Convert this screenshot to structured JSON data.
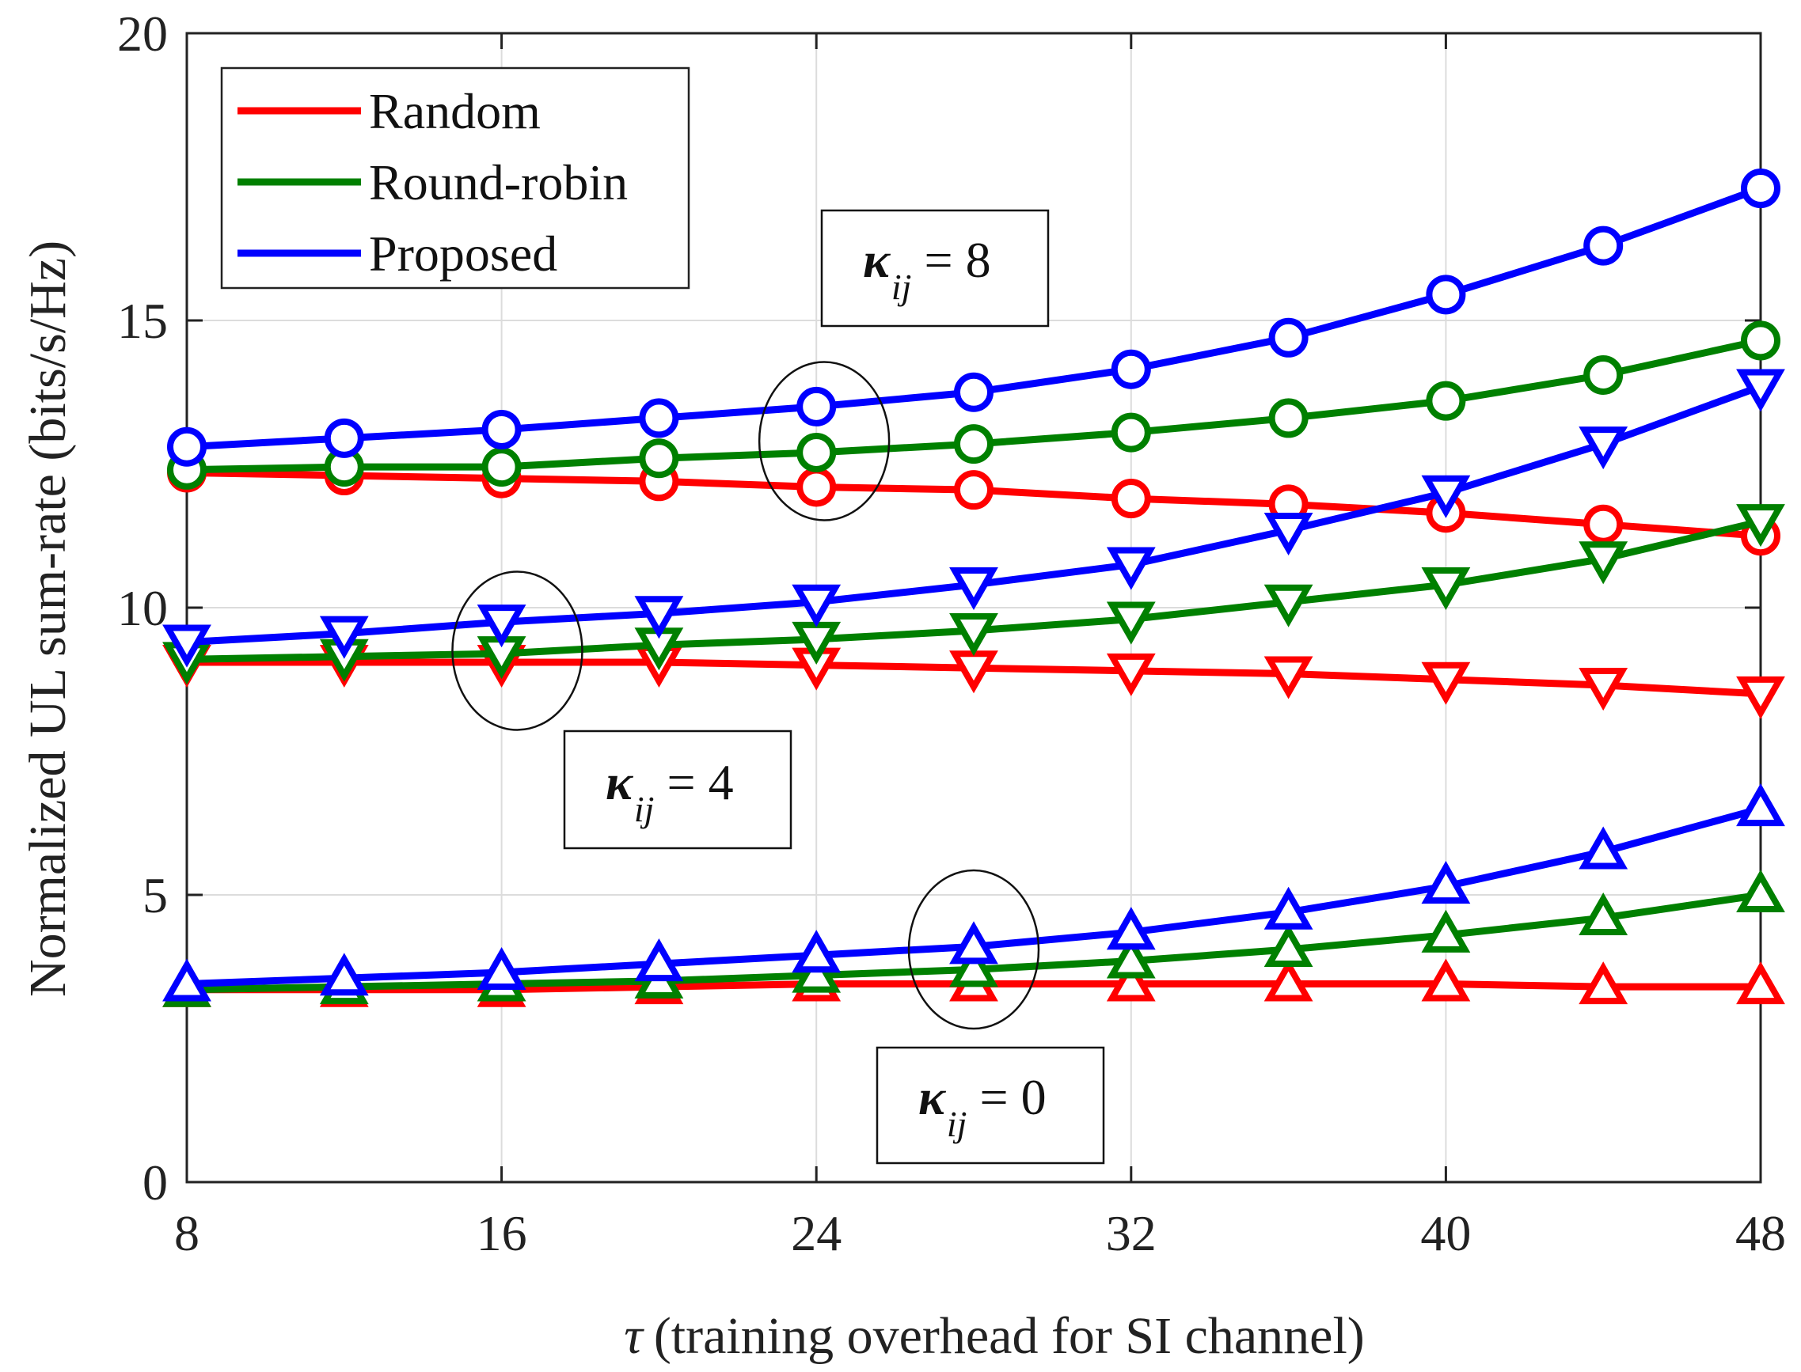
{
  "chart_data": {
    "type": "line",
    "xlabel_symbol": "τ",
    "xlabel": "(training overhead for SI channel)",
    "ylabel": "Normalized UL sum-rate (bits/s/Hz)",
    "xlim": [
      8,
      48
    ],
    "ylim": [
      0,
      20
    ],
    "xticks": [
      8,
      16,
      24,
      32,
      40,
      48
    ],
    "yticks": [
      0,
      5,
      10,
      15,
      20
    ],
    "grid": true,
    "legend_position": "top-left",
    "x": [
      8,
      12,
      16,
      20,
      24,
      28,
      32,
      36,
      40,
      44,
      48
    ],
    "colors": {
      "Random": "#ff0000",
      "Round-robin": "#008000",
      "Proposed": "#0000ff"
    },
    "legend": [
      "Random",
      "Round-robin",
      "Proposed"
    ],
    "series": [
      {
        "name": "Random",
        "kappa": "8",
        "marker": "circle",
        "values": [
          12.35,
          12.3,
          12.25,
          12.2,
          12.1,
          12.05,
          11.9,
          11.8,
          11.65,
          11.45,
          11.25
        ]
      },
      {
        "name": "Round-robin",
        "kappa": "8",
        "marker": "circle",
        "values": [
          12.4,
          12.45,
          12.45,
          12.6,
          12.7,
          12.85,
          13.05,
          13.3,
          13.6,
          14.05,
          14.65
        ]
      },
      {
        "name": "Proposed",
        "kappa": "8",
        "marker": "circle",
        "values": [
          12.8,
          12.95,
          13.1,
          13.3,
          13.5,
          13.75,
          14.15,
          14.7,
          15.45,
          16.3,
          17.3
        ]
      },
      {
        "name": "Random",
        "kappa": "4",
        "marker": "triangle-down",
        "values": [
          9.05,
          9.05,
          9.05,
          9.05,
          9.0,
          8.95,
          8.9,
          8.85,
          8.75,
          8.65,
          8.5
        ]
      },
      {
        "name": "Round-robin",
        "kappa": "4",
        "marker": "triangle-down",
        "values": [
          9.1,
          9.15,
          9.2,
          9.35,
          9.45,
          9.6,
          9.8,
          10.1,
          10.4,
          10.85,
          11.5
        ]
      },
      {
        "name": "Proposed",
        "kappa": "4",
        "marker": "triangle-down",
        "values": [
          9.4,
          9.55,
          9.75,
          9.9,
          10.1,
          10.4,
          10.75,
          11.35,
          12.0,
          12.85,
          13.85
        ]
      },
      {
        "name": "Random",
        "kappa": "0",
        "marker": "triangle-up",
        "values": [
          3.35,
          3.35,
          3.35,
          3.4,
          3.45,
          3.45,
          3.45,
          3.45,
          3.45,
          3.4,
          3.4
        ]
      },
      {
        "name": "Round-robin",
        "kappa": "0",
        "marker": "triangle-up",
        "values": [
          3.35,
          3.4,
          3.45,
          3.5,
          3.6,
          3.7,
          3.85,
          4.05,
          4.3,
          4.6,
          5.0
        ]
      },
      {
        "name": "Proposed",
        "kappa": "0",
        "marker": "triangle-up",
        "values": [
          3.45,
          3.55,
          3.65,
          3.8,
          3.95,
          4.1,
          4.35,
          4.7,
          5.15,
          5.75,
          6.5
        ]
      }
    ],
    "annotations": [
      {
        "symbol": "κ",
        "subscript": "ij",
        "text": "= 8",
        "ellipse_center": [
          24.2,
          12.9
        ]
      },
      {
        "symbol": "κ",
        "subscript": "ij",
        "text": "= 4",
        "ellipse_center": [
          16.4,
          9.25
        ]
      },
      {
        "symbol": "κ",
        "subscript": "ij",
        "text": "= 0",
        "ellipse_center": [
          28.0,
          4.05
        ]
      }
    ]
  }
}
